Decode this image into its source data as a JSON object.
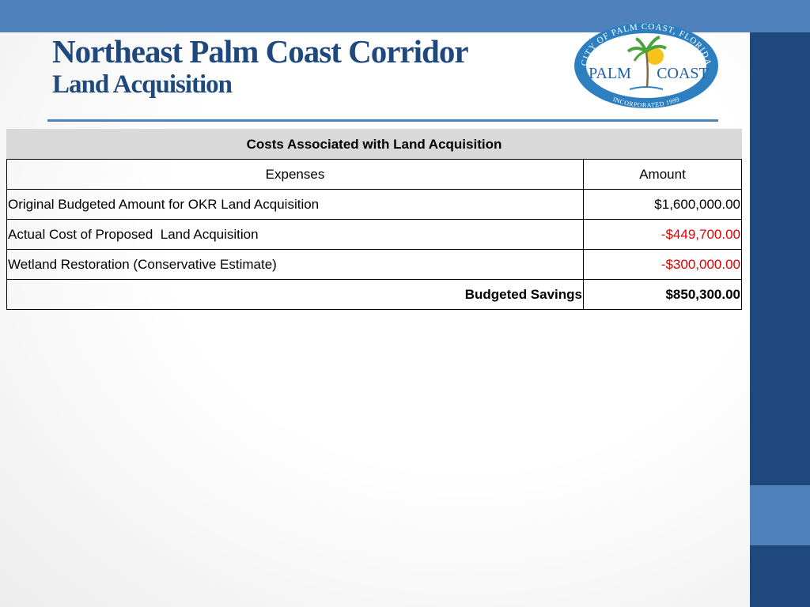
{
  "header": {
    "title_line1": "Northeast Palm Coast Corridor",
    "title_line2": "Land Acquisition"
  },
  "logo": {
    "ring_text": "CITY OF PALM COAST, FLORIDA",
    "left_word": "PALM",
    "right_word": "COAST",
    "bottom_text": "INCORPORATED 1999",
    "colors": {
      "ring": "#2e7fc0",
      "text": "#1f5fa6",
      "palm": "#4aa33c",
      "sun": "#f6c21c"
    }
  },
  "table": {
    "heading": "Costs Associated with Land Acquisition",
    "columns": {
      "expenses": "Expenses",
      "amount": "Amount"
    },
    "rows": [
      {
        "label": "Original Budgeted Amount for OKR Land Acquisition",
        "amount": "$1,600,000.00"
      },
      {
        "label": "Actual Cost of Proposed  Land Acquisition",
        "amount": "-$449,700.00"
      },
      {
        "label": "Wetland Restoration (Conservative Estimate)",
        "amount": "-$300,000.00"
      }
    ],
    "total": {
      "label": "Budgeted Savings",
      "amount": "$850,300.00"
    }
  },
  "colors": {
    "top_bar": "#4f81bd",
    "side_bar": "#1f497d",
    "title": "#1f497d",
    "negative": "#e00000"
  }
}
